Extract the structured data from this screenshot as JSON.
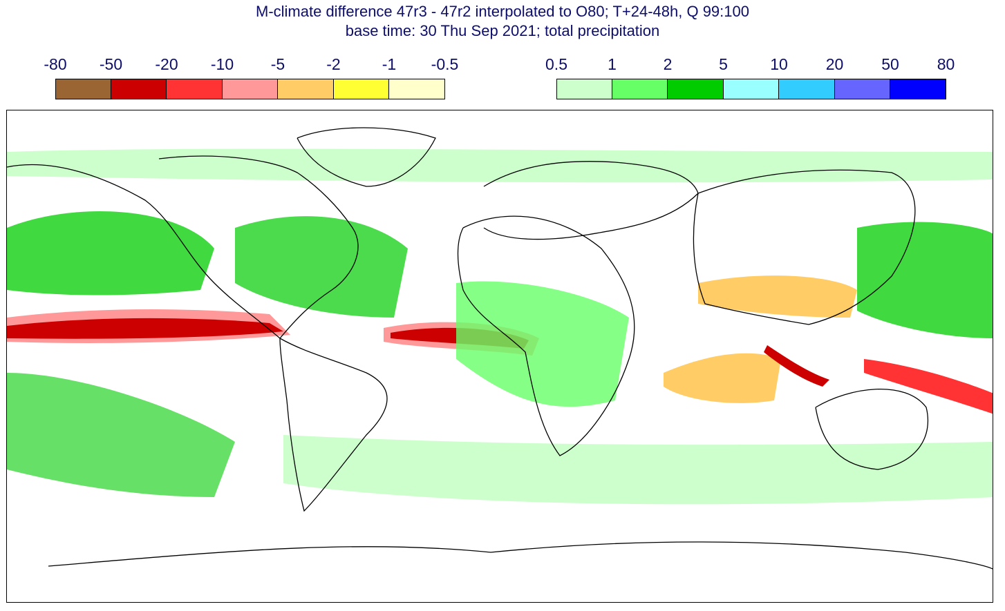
{
  "title": {
    "line1": "M-climate difference 47r3 - 47r2 interpolated to O80; T+24-48h, Q 99:100",
    "line2": "base time: 30 Thu Sep 2021; total precipitation"
  },
  "legend_negative": {
    "labels": [
      "-80",
      "-50",
      "-20",
      "-10",
      "-5",
      "-2",
      "-1",
      "-0.5"
    ],
    "colors": [
      "#9a6533",
      "#cc0000",
      "#ff3333",
      "#ff9999",
      "#ffcc66",
      "#ffff33",
      "#ffffcc"
    ]
  },
  "legend_positive": {
    "labels": [
      "0.5",
      "1",
      "2",
      "5",
      "10",
      "20",
      "50",
      "80"
    ],
    "colors": [
      "#ccffcc",
      "#66ff66",
      "#00cc00",
      "#99ffff",
      "#33ccff",
      "#6666ff",
      "#0000ff"
    ]
  },
  "colors": {
    "text": "#0d0d6b",
    "coast": "#000000"
  }
}
